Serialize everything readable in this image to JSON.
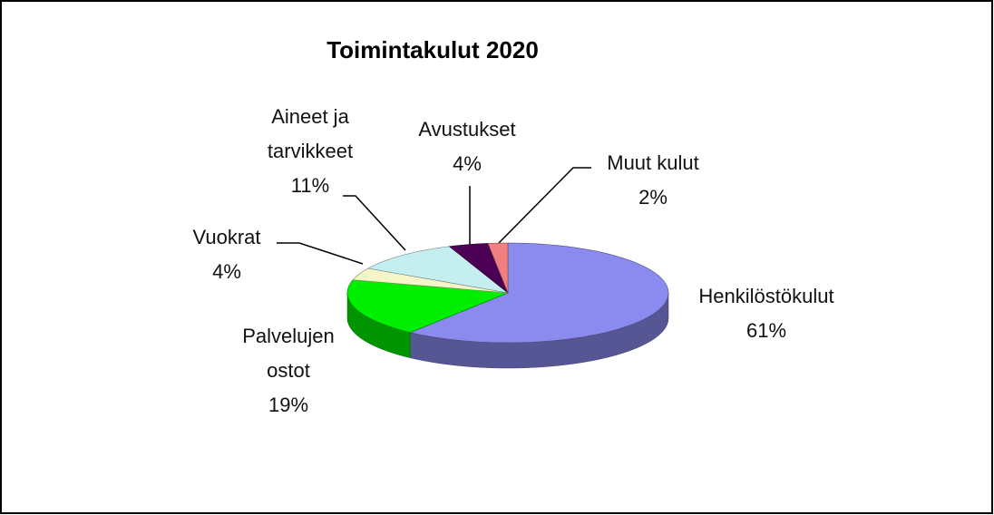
{
  "chart_data": {
    "type": "pie",
    "title": "Toimintakulut 2020",
    "categories": [
      "Henkilöstökulut",
      "Palvelujen ostot",
      "Vuokrat",
      "Aineet ja tarvikkeet",
      "Avustukset",
      "Muut kulut"
    ],
    "values": [
      61,
      19,
      4,
      11,
      4,
      2
    ],
    "value_labels": [
      "61%",
      "19%",
      "4%",
      "11%",
      "4%",
      "2%"
    ],
    "colors": [
      "#8b8bef",
      "#00ee00",
      "#f5f5c8",
      "#c5eef0",
      "#4b0055",
      "#f08080"
    ]
  }
}
